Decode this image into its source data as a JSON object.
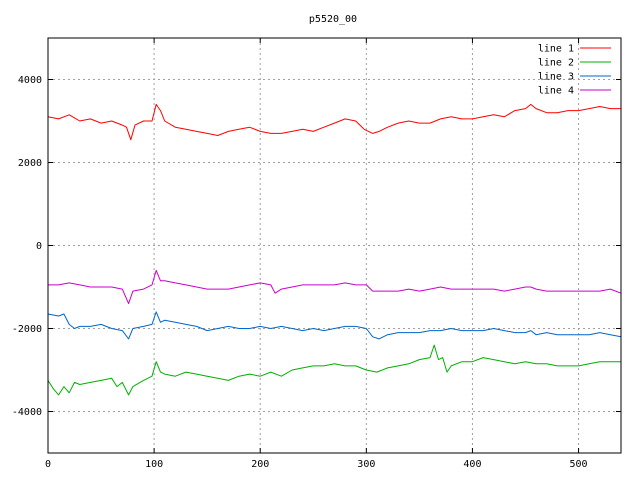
{
  "chart_data": {
    "type": "line",
    "title": "p5520_00",
    "xlabel": "",
    "ylabel": "",
    "xlim": [
      0,
      540
    ],
    "ylim": [
      -5000,
      5000
    ],
    "x_ticks": [
      0,
      100,
      200,
      300,
      400,
      500
    ],
    "y_ticks": [
      -4000,
      -2000,
      0,
      2000,
      4000
    ],
    "grid": true,
    "legend_position": "top-right",
    "series": [
      {
        "name": "line 1",
        "color": "#ff0000",
        "points": [
          [
            0,
            3100
          ],
          [
            10,
            3050
          ],
          [
            20,
            3150
          ],
          [
            30,
            3000
          ],
          [
            40,
            3050
          ],
          [
            50,
            2950
          ],
          [
            60,
            3000
          ],
          [
            70,
            2900
          ],
          [
            74,
            2850
          ],
          [
            78,
            2550
          ],
          [
            82,
            2900
          ],
          [
            90,
            3000
          ],
          [
            98,
            3000
          ],
          [
            102,
            3400
          ],
          [
            106,
            3250
          ],
          [
            110,
            3000
          ],
          [
            120,
            2850
          ],
          [
            130,
            2800
          ],
          [
            140,
            2750
          ],
          [
            150,
            2700
          ],
          [
            160,
            2650
          ],
          [
            170,
            2750
          ],
          [
            180,
            2800
          ],
          [
            190,
            2850
          ],
          [
            200,
            2750
          ],
          [
            210,
            2700
          ],
          [
            220,
            2700
          ],
          [
            230,
            2750
          ],
          [
            240,
            2800
          ],
          [
            250,
            2750
          ],
          [
            260,
            2850
          ],
          [
            270,
            2950
          ],
          [
            280,
            3050
          ],
          [
            290,
            3000
          ],
          [
            298,
            2800
          ],
          [
            306,
            2700
          ],
          [
            312,
            2750
          ],
          [
            320,
            2850
          ],
          [
            330,
            2950
          ],
          [
            340,
            3000
          ],
          [
            350,
            2950
          ],
          [
            360,
            2950
          ],
          [
            370,
            3050
          ],
          [
            380,
            3100
          ],
          [
            390,
            3050
          ],
          [
            400,
            3050
          ],
          [
            410,
            3100
          ],
          [
            420,
            3150
          ],
          [
            430,
            3100
          ],
          [
            440,
            3250
          ],
          [
            450,
            3300
          ],
          [
            455,
            3400
          ],
          [
            460,
            3300
          ],
          [
            470,
            3200
          ],
          [
            480,
            3200
          ],
          [
            490,
            3250
          ],
          [
            500,
            3250
          ],
          [
            510,
            3300
          ],
          [
            520,
            3350
          ],
          [
            530,
            3300
          ],
          [
            540,
            3300
          ]
        ]
      },
      {
        "name": "line 2",
        "color": "#00b000",
        "points": [
          [
            0,
            -3250
          ],
          [
            5,
            -3450
          ],
          [
            10,
            -3600
          ],
          [
            15,
            -3400
          ],
          [
            20,
            -3550
          ],
          [
            25,
            -3300
          ],
          [
            30,
            -3350
          ],
          [
            40,
            -3300
          ],
          [
            50,
            -3250
          ],
          [
            60,
            -3200
          ],
          [
            65,
            -3400
          ],
          [
            70,
            -3300
          ],
          [
            76,
            -3600
          ],
          [
            80,
            -3400
          ],
          [
            90,
            -3250
          ],
          [
            98,
            -3150
          ],
          [
            102,
            -2800
          ],
          [
            106,
            -3050
          ],
          [
            110,
            -3100
          ],
          [
            120,
            -3150
          ],
          [
            130,
            -3050
          ],
          [
            140,
            -3100
          ],
          [
            150,
            -3150
          ],
          [
            160,
            -3200
          ],
          [
            170,
            -3250
          ],
          [
            180,
            -3150
          ],
          [
            190,
            -3100
          ],
          [
            200,
            -3150
          ],
          [
            210,
            -3050
          ],
          [
            220,
            -3150
          ],
          [
            230,
            -3000
          ],
          [
            240,
            -2950
          ],
          [
            250,
            -2900
          ],
          [
            260,
            -2900
          ],
          [
            270,
            -2850
          ],
          [
            280,
            -2900
          ],
          [
            290,
            -2900
          ],
          [
            300,
            -3000
          ],
          [
            310,
            -3050
          ],
          [
            320,
            -2950
          ],
          [
            330,
            -2900
          ],
          [
            340,
            -2850
          ],
          [
            350,
            -2750
          ],
          [
            360,
            -2700
          ],
          [
            364,
            -2400
          ],
          [
            368,
            -2750
          ],
          [
            372,
            -2700
          ],
          [
            376,
            -3050
          ],
          [
            380,
            -2900
          ],
          [
            390,
            -2800
          ],
          [
            400,
            -2800
          ],
          [
            410,
            -2700
          ],
          [
            420,
            -2750
          ],
          [
            430,
            -2800
          ],
          [
            440,
            -2850
          ],
          [
            450,
            -2800
          ],
          [
            460,
            -2850
          ],
          [
            470,
            -2850
          ],
          [
            480,
            -2900
          ],
          [
            490,
            -2900
          ],
          [
            500,
            -2900
          ],
          [
            510,
            -2850
          ],
          [
            520,
            -2800
          ],
          [
            530,
            -2800
          ],
          [
            540,
            -2800
          ]
        ]
      },
      {
        "name": "line 3",
        "color": "#0066cc",
        "points": [
          [
            0,
            -1650
          ],
          [
            10,
            -1700
          ],
          [
            15,
            -1650
          ],
          [
            20,
            -1900
          ],
          [
            25,
            -2000
          ],
          [
            30,
            -1950
          ],
          [
            40,
            -1950
          ],
          [
            50,
            -1900
          ],
          [
            60,
            -2000
          ],
          [
            70,
            -2050
          ],
          [
            76,
            -2250
          ],
          [
            80,
            -2000
          ],
          [
            90,
            -1950
          ],
          [
            98,
            -1900
          ],
          [
            102,
            -1600
          ],
          [
            106,
            -1850
          ],
          [
            110,
            -1800
          ],
          [
            120,
            -1850
          ],
          [
            130,
            -1900
          ],
          [
            140,
            -1950
          ],
          [
            150,
            -2050
          ],
          [
            160,
            -2000
          ],
          [
            170,
            -1950
          ],
          [
            180,
            -2000
          ],
          [
            190,
            -2000
          ],
          [
            200,
            -1950
          ],
          [
            210,
            -2000
          ],
          [
            220,
            -1950
          ],
          [
            230,
            -2000
          ],
          [
            240,
            -2050
          ],
          [
            250,
            -2000
          ],
          [
            260,
            -2050
          ],
          [
            270,
            -2000
          ],
          [
            280,
            -1950
          ],
          [
            290,
            -1950
          ],
          [
            300,
            -2000
          ],
          [
            306,
            -2200
          ],
          [
            312,
            -2250
          ],
          [
            320,
            -2150
          ],
          [
            330,
            -2100
          ],
          [
            340,
            -2100
          ],
          [
            350,
            -2100
          ],
          [
            360,
            -2050
          ],
          [
            370,
            -2050
          ],
          [
            380,
            -2000
          ],
          [
            390,
            -2050
          ],
          [
            400,
            -2050
          ],
          [
            410,
            -2050
          ],
          [
            420,
            -2000
          ],
          [
            430,
            -2050
          ],
          [
            440,
            -2100
          ],
          [
            450,
            -2100
          ],
          [
            455,
            -2050
          ],
          [
            460,
            -2150
          ],
          [
            470,
            -2100
          ],
          [
            480,
            -2150
          ],
          [
            490,
            -2150
          ],
          [
            500,
            -2150
          ],
          [
            510,
            -2150
          ],
          [
            520,
            -2100
          ],
          [
            530,
            -2150
          ],
          [
            540,
            -2200
          ]
        ]
      },
      {
        "name": "line 4",
        "color": "#cc00cc",
        "points": [
          [
            0,
            -950
          ],
          [
            10,
            -950
          ],
          [
            20,
            -900
          ],
          [
            30,
            -950
          ],
          [
            40,
            -1000
          ],
          [
            50,
            -1000
          ],
          [
            60,
            -1000
          ],
          [
            70,
            -1050
          ],
          [
            76,
            -1400
          ],
          [
            80,
            -1100
          ],
          [
            90,
            -1050
          ],
          [
            98,
            -950
          ],
          [
            102,
            -600
          ],
          [
            106,
            -850
          ],
          [
            110,
            -850
          ],
          [
            120,
            -900
          ],
          [
            130,
            -950
          ],
          [
            140,
            -1000
          ],
          [
            150,
            -1050
          ],
          [
            160,
            -1050
          ],
          [
            170,
            -1050
          ],
          [
            180,
            -1000
          ],
          [
            190,
            -950
          ],
          [
            200,
            -900
          ],
          [
            210,
            -950
          ],
          [
            214,
            -1150
          ],
          [
            220,
            -1050
          ],
          [
            230,
            -1000
          ],
          [
            240,
            -950
          ],
          [
            250,
            -950
          ],
          [
            260,
            -950
          ],
          [
            270,
            -950
          ],
          [
            280,
            -900
          ],
          [
            290,
            -950
          ],
          [
            300,
            -950
          ],
          [
            306,
            -1100
          ],
          [
            312,
            -1100
          ],
          [
            320,
            -1100
          ],
          [
            330,
            -1100
          ],
          [
            340,
            -1050
          ],
          [
            350,
            -1100
          ],
          [
            360,
            -1050
          ],
          [
            370,
            -1000
          ],
          [
            380,
            -1050
          ],
          [
            390,
            -1050
          ],
          [
            400,
            -1050
          ],
          [
            410,
            -1050
          ],
          [
            420,
            -1050
          ],
          [
            430,
            -1100
          ],
          [
            440,
            -1050
          ],
          [
            450,
            -1000
          ],
          [
            455,
            -1000
          ],
          [
            460,
            -1050
          ],
          [
            470,
            -1100
          ],
          [
            480,
            -1100
          ],
          [
            490,
            -1100
          ],
          [
            500,
            -1100
          ],
          [
            510,
            -1100
          ],
          [
            520,
            -1100
          ],
          [
            530,
            -1050
          ],
          [
            540,
            -1150
          ]
        ]
      }
    ]
  }
}
